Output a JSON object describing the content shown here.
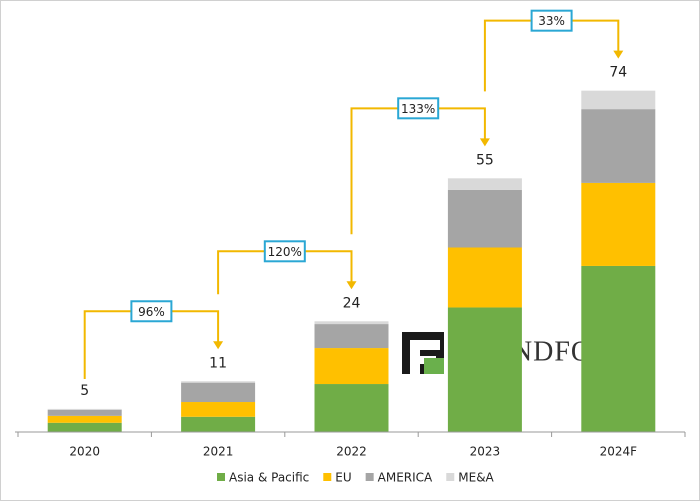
{
  "chart_data": {
    "type": "stacked_bar",
    "categories": [
      "2020",
      "2021",
      "2022",
      "2023",
      "2024F"
    ],
    "series": [
      {
        "name": "Asia & Pacific",
        "color": "#70ad47",
        "values": [
          2,
          3.3,
          10.4,
          27,
          36
        ]
      },
      {
        "name": "EU",
        "color": "#ffc000",
        "values": [
          1.5,
          3.2,
          7.8,
          13,
          18
        ]
      },
      {
        "name": "AMERICA",
        "color": "#a5a5a5",
        "values": [
          1.3,
          4.2,
          5.2,
          12.5,
          16
        ]
      },
      {
        "name": "ME&A",
        "color": "#d9d9d9",
        "values": [
          0.2,
          0.3,
          0.6,
          2.5,
          4
        ]
      }
    ],
    "totals": [
      5,
      11,
      24,
      55,
      74
    ],
    "growth": {
      "values": [
        96,
        120,
        133,
        33
      ],
      "value_labels": [
        "96%",
        "120%",
        "133%",
        "33%"
      ]
    },
    "ylim": [
      0,
      80
    ],
    "watermark": "TRENDFORCE"
  }
}
